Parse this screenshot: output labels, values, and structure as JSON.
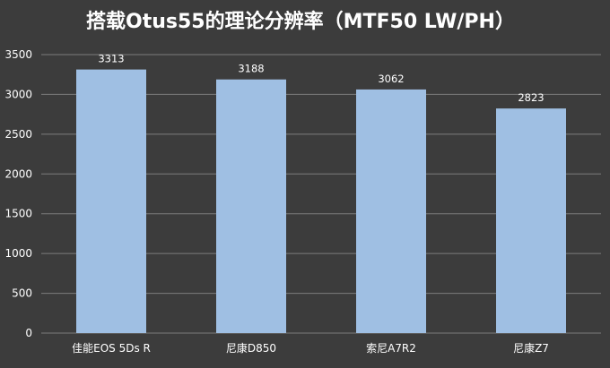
{
  "chart_data": {
    "type": "bar",
    "title": "搭载Otus55的理论分辨率（MTF50 LW/PH）",
    "categories": [
      "佳能EOS 5Ds R",
      "尼康D850",
      "索尼A7R2",
      "尼康Z7"
    ],
    "values": [
      3313,
      3188,
      3062,
      2823
    ],
    "data_labels": [
      "3313",
      "3188",
      "3062",
      "2823"
    ],
    "xlabel": "",
    "ylabel": "",
    "ylim": [
      0,
      3500
    ],
    "yticks": [
      "0",
      "500",
      "1000",
      "1500",
      "2000",
      "2500",
      "3000",
      "3500"
    ],
    "grid": true,
    "legend": "none",
    "colors": {
      "bar": "#9fbfe3",
      "background": "#3c3c3c",
      "grid": "#7d7d7d",
      "text": "#ffffff"
    }
  }
}
